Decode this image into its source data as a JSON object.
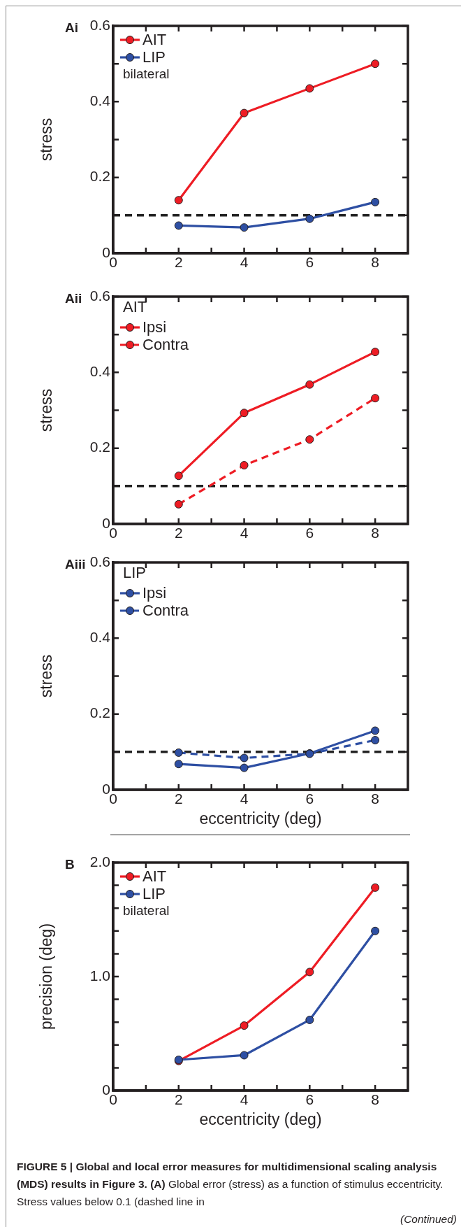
{
  "chart_data": [
    {
      "type": "line",
      "title": "Ai",
      "ylabel": "stress",
      "legend_title": "bilateral",
      "x": [
        2,
        4,
        6,
        8
      ],
      "series": [
        {
          "name": "AIT",
          "color": "#ee1c24",
          "values": [
            0.14,
            0.37,
            0.435,
            0.5
          ]
        },
        {
          "name": "LIP",
          "color": "#2e4fa3",
          "values": [
            0.073,
            0.068,
            0.091,
            0.135
          ]
        }
      ],
      "xlim": [
        0,
        9
      ],
      "xticks": [
        0,
        {
          "value": 1,
          "label": null
        },
        2,
        {
          "value": 3,
          "label": null
        },
        4,
        {
          "value": 5,
          "label": null
        },
        6,
        {
          "value": 7,
          "label": null
        },
        8
      ],
      "ylim": [
        0,
        0.6
      ],
      "yticks": [
        0,
        {
          "value": 0.1,
          "label": null
        },
        0.2,
        {
          "value": 0.3,
          "label": null
        },
        0.4,
        {
          "value": 0.5,
          "label": null
        },
        0.6
      ],
      "ref_lines": [
        {
          "axis": "y",
          "value": 0.1,
          "color": "#222222",
          "line_style": "dashed"
        }
      ],
      "legend": "top left",
      "marker": "circle",
      "line_style": "solid",
      "grid": false
    },
    {
      "type": "line",
      "title": "Aii",
      "ylabel": "stress",
      "legend_title": "AIT",
      "x": [
        2,
        4,
        6,
        8
      ],
      "series": [
        {
          "name": "Ipsi",
          "color": "#ee1c24",
          "values": [
            0.127,
            0.293,
            0.368,
            0.454
          ]
        },
        {
          "name": "Contra",
          "color": "#ee1c24",
          "values": [
            0.052,
            0.155,
            0.223,
            0.332
          ],
          "line_style": "dashed"
        }
      ],
      "xlim": [
        0,
        9
      ],
      "xticks": [
        0,
        {
          "value": 1,
          "label": null
        },
        2,
        {
          "value": 3,
          "label": null
        },
        4,
        {
          "value": 5,
          "label": null
        },
        6,
        {
          "value": 7,
          "label": null
        },
        8
      ],
      "ylim": [
        0,
        0.6
      ],
      "yticks": [
        0,
        {
          "value": 0.1,
          "label": null
        },
        0.2,
        {
          "value": 0.3,
          "label": null
        },
        0.4,
        {
          "value": 0.5,
          "label": null
        },
        0.6
      ],
      "ref_lines": [
        {
          "axis": "y",
          "value": 0.1,
          "color": "#222222",
          "line_style": "dashed"
        }
      ],
      "legend": "top left",
      "marker": "circle",
      "line_style": "solid",
      "grid": false
    },
    {
      "type": "line",
      "title": "Aiii",
      "ylabel": "stress",
      "xlabel": "eccentricity (deg)",
      "legend_title": "LIP",
      "x": [
        2,
        4,
        6,
        8
      ],
      "series": [
        {
          "name": "Ipsi",
          "color": "#2e4fa3",
          "values": [
            0.068,
            0.058,
            0.096,
            0.156
          ]
        },
        {
          "name": "Contra",
          "color": "#2e4fa3",
          "values": [
            0.098,
            0.084,
            0.095,
            0.131
          ],
          "line_style": "dashed"
        }
      ],
      "xlim": [
        0,
        9
      ],
      "xticks": [
        0,
        {
          "value": 1,
          "label": null
        },
        2,
        {
          "value": 3,
          "label": null
        },
        4,
        {
          "value": 5,
          "label": null
        },
        6,
        {
          "value": 7,
          "label": null
        },
        8
      ],
      "ylim": [
        0,
        0.6
      ],
      "yticks": [
        0,
        {
          "value": 0.1,
          "label": null
        },
        0.2,
        {
          "value": 0.3,
          "label": null
        },
        0.4,
        {
          "value": 0.5,
          "label": null
        },
        0.6
      ],
      "ref_lines": [
        {
          "axis": "y",
          "value": 0.1,
          "color": "#222222",
          "line_style": "dashed"
        }
      ],
      "legend": "top left",
      "marker": "circle",
      "line_style": "solid",
      "grid": false
    },
    {
      "type": "line",
      "title": "B",
      "ylabel": "precision (deg)",
      "xlabel": "eccentricity (deg)",
      "legend_title": "bilateral",
      "x": [
        2,
        4,
        6,
        8
      ],
      "series": [
        {
          "name": "AIT",
          "color": "#ee1c24",
          "values": [
            0.26,
            0.57,
            1.04,
            1.78
          ]
        },
        {
          "name": "LIP",
          "color": "#2e4fa3",
          "values": [
            0.27,
            0.31,
            0.62,
            1.4
          ]
        }
      ],
      "xlim": [
        0,
        9
      ],
      "xticks": [
        0,
        {
          "value": 1,
          "label": null
        },
        2,
        {
          "value": 3,
          "label": null
        },
        4,
        {
          "value": 5,
          "label": null
        },
        6,
        {
          "value": 7,
          "label": null
        },
        8
      ],
      "ylim": [
        0,
        2
      ],
      "yticks": [
        0,
        {
          "value": 0.2,
          "label": null
        },
        {
          "value": 0.4,
          "label": null
        },
        {
          "value": 0.6,
          "label": null
        },
        {
          "value": 0.8,
          "label": null
        },
        {
          "value": 1,
          "label": "1.0"
        },
        {
          "value": 1.2,
          "label": null
        },
        {
          "value": 1.4,
          "label": null
        },
        {
          "value": 1.6,
          "label": null
        },
        {
          "value": 1.8,
          "label": null
        },
        {
          "value": 2,
          "label": "2.0"
        }
      ],
      "legend": "top left",
      "marker": "circle",
      "line_style": "solid",
      "grid": false,
      "annotations": [
        "FIGURE 5 | Global and local error measures for multidimensional scaling analysis (MDS) results in Figure 3. (A)",
        "Global error (stress) as a function of stimulus eccentricity. Stress values below 0.1 (dashed line in",
        "(Continued)"
      ]
    }
  ]
}
